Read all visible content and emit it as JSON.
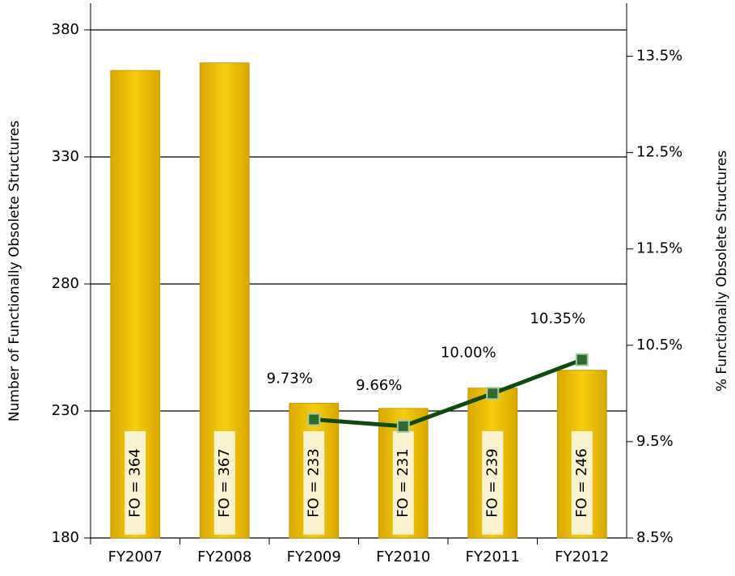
{
  "chart_data": {
    "type": "bar-line",
    "y_label": "Number  of Functionally Obsolete Structures",
    "y2_label": "% Functionally Obsolete Structures",
    "categories": [
      "FY2007",
      "FY2008",
      "FY2009",
      "FY2010",
      "FY2011",
      "FY2012"
    ],
    "series": [
      {
        "type": "bar",
        "color": "#f2c200",
        "values": [
          364,
          367,
          233,
          231,
          239,
          246
        ],
        "value_labels": [
          "FO = 364",
          "FO = 367",
          "FO = 233",
          "FO = 231",
          "FO = 239",
          "FO = 246"
        ]
      },
      {
        "type": "line",
        "axis": "y2",
        "color": "#0f4a0f",
        "values": [
          null,
          null,
          9.73,
          9.66,
          10.0,
          10.35
        ],
        "value_labels": [
          null,
          null,
          "9.73%",
          "9.66%",
          "10.00%",
          "10.35%"
        ]
      }
    ],
    "ylim": [
      180,
      390.5
    ],
    "yticks": [
      180,
      230,
      280,
      330,
      380
    ],
    "y2lim": [
      8.5,
      14.05
    ],
    "y2ticks": [
      {
        "value": 8.5,
        "label": "8.5%"
      },
      {
        "value": 9.5,
        "label": "9.5%"
      },
      {
        "value": 10.5,
        "label": "10.5%"
      },
      {
        "value": 11.5,
        "label": "11.5%"
      },
      {
        "value": 12.5,
        "label": "12.5%"
      },
      {
        "value": 13.5,
        "label": "13.5%"
      }
    ],
    "grid": true
  }
}
